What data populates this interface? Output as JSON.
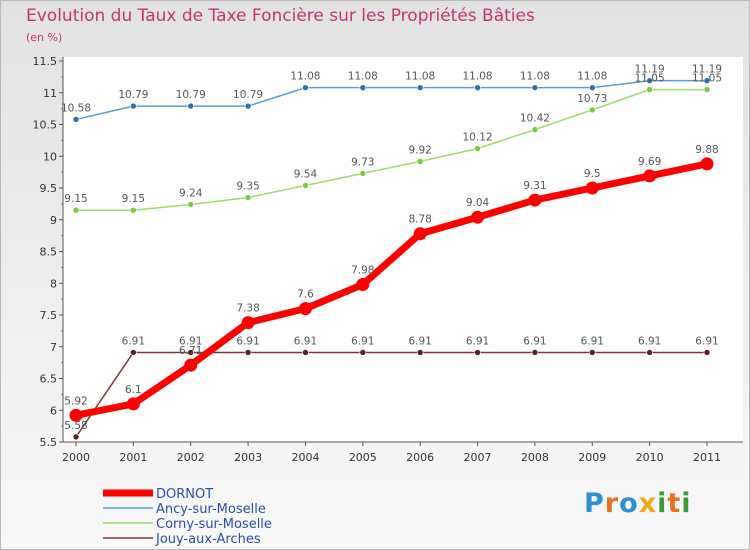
{
  "title": "Evolution du Taux de Taxe Foncière sur les Propriétés Bâties",
  "unit_label": "(en %)",
  "logo_text": "Proxiti",
  "chart_data": {
    "type": "line",
    "title": "Evolution du Taux de Taxe Foncière sur les Propriétés Bâties",
    "ylabel": "(en %)",
    "xlabel": "",
    "x": [
      "2000",
      "2001",
      "2002",
      "2003",
      "2004",
      "2005",
      "2006",
      "2007",
      "2008",
      "2009",
      "2010",
      "2011"
    ],
    "ylim": [
      5.5,
      11.5
    ],
    "yticks": [
      "5.5",
      "6",
      "6.5",
      "7",
      "7.5",
      "8",
      "8.5",
      "9",
      "9.5",
      "10",
      "10.5",
      "11",
      "11.5"
    ],
    "legend_position": "bottom-left",
    "series": [
      {
        "name": "Ancy-sur-Moselle",
        "color": "#5b9bd5",
        "marker_color": "#2e6fae",
        "values": [
          10.58,
          10.79,
          10.79,
          10.79,
          11.08,
          11.08,
          11.08,
          11.08,
          11.08,
          11.08,
          11.19,
          11.19
        ],
        "labels": [
          "10.58",
          "10.79",
          "10.79",
          "10.79",
          "11.08",
          "11.08",
          "11.08",
          "11.08",
          "11.08",
          "11.08",
          "11.19",
          "11.19"
        ]
      },
      {
        "name": "Corny-sur-Moselle",
        "color": "#9bdc6c",
        "marker_color": "#7cc940",
        "values": [
          9.15,
          9.15,
          9.24,
          9.35,
          9.54,
          9.73,
          9.92,
          10.12,
          10.42,
          10.73,
          11.05,
          11.05
        ],
        "labels": [
          "9.15",
          "9.15",
          "9.24",
          "9.35",
          "9.54",
          "9.73",
          "9.92",
          "10.12",
          "10.42",
          "10.73",
          "11.05",
          "11.05"
        ]
      },
      {
        "name": "Jouy-aux-Arches",
        "color": "#7a3a3a",
        "marker_color": "#5c2020",
        "values": [
          5.58,
          6.91,
          6.91,
          6.91,
          6.91,
          6.91,
          6.91,
          6.91,
          6.91,
          6.91,
          6.91,
          6.91
        ],
        "labels": [
          "5.58",
          "6.91",
          "6.91",
          "6.91",
          "6.91",
          "6.91",
          "6.91",
          "6.91",
          "6.91",
          "6.91",
          "6.91",
          "6.91"
        ]
      },
      {
        "name": "DORNOT",
        "color": "#ff0000",
        "marker_color": "#ff0000",
        "values": [
          5.92,
          6.1,
          6.71,
          7.38,
          7.6,
          7.98,
          8.78,
          9.04,
          9.31,
          9.5,
          9.69,
          9.88
        ],
        "labels": [
          "5.92",
          "6.1",
          "6.71",
          "7.38",
          "7.6",
          "7.98",
          "8.78",
          "9.04",
          "9.31",
          "9.5",
          "9.69",
          "9.88"
        ],
        "thick": true
      }
    ],
    "legend": [
      "DORNOT",
      "Ancy-sur-Moselle",
      "Corny-sur-Moselle",
      "Jouy-aux-Arches"
    ]
  }
}
